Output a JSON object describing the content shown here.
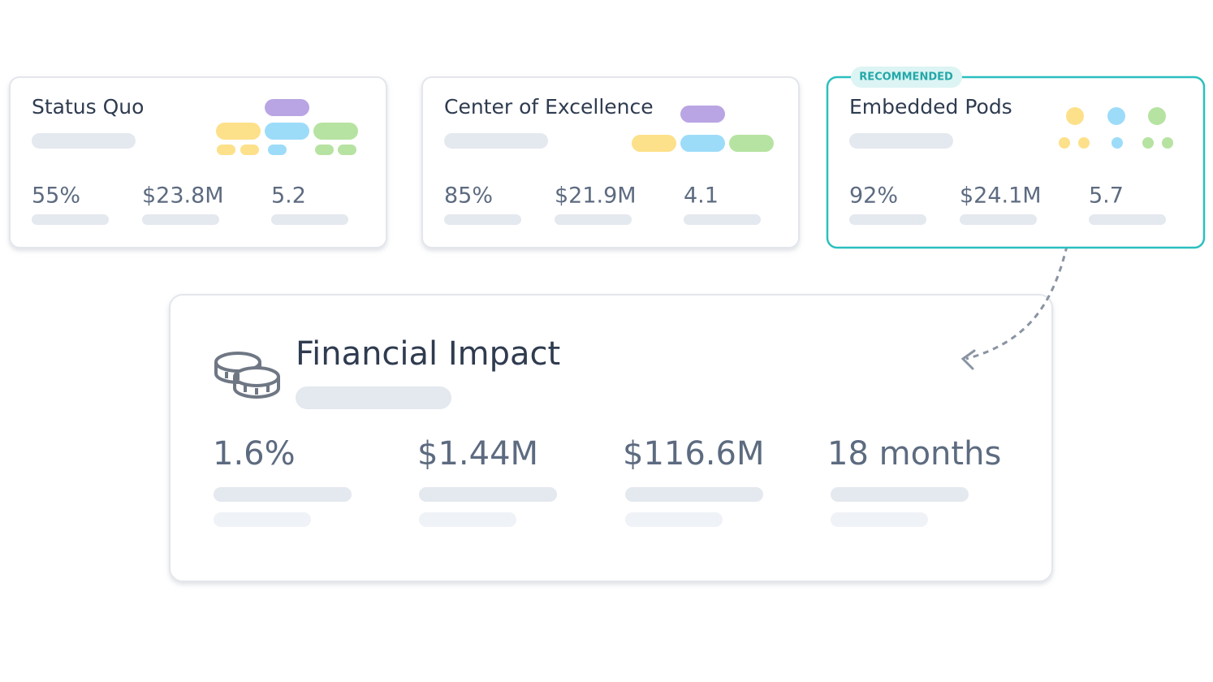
{
  "cards": [
    {
      "title": "Status Quo",
      "metrics": [
        "55%",
        "$23.8M",
        "5.2"
      ]
    },
    {
      "title": "Center of Excellence",
      "metrics": [
        "85%",
        "$21.9M",
        "4.1"
      ]
    },
    {
      "badge": "RECOMMENDED",
      "title": "Embedded Pods",
      "metrics": [
        "92%",
        "$24.1M",
        "5.7"
      ]
    }
  ],
  "impact": {
    "title": "Financial Impact",
    "metrics": [
      "1.6%",
      "$1.44M",
      "$116.6M",
      "18 months"
    ]
  }
}
